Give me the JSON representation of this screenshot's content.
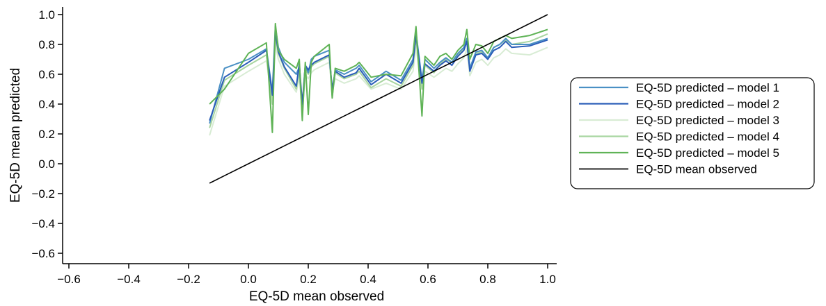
{
  "chart_data": {
    "type": "line",
    "title": "",
    "xlabel": "EQ-5D mean observed",
    "ylabel": "EQ-5D mean predicted",
    "xlim": [
      -0.65,
      1.02
    ],
    "ylim": [
      -0.65,
      1.06
    ],
    "x_ticks": [
      -0.6,
      -0.4,
      -0.2,
      0.0,
      0.2,
      0.4,
      0.6,
      0.8,
      1.0
    ],
    "x_tick_labels": [
      "−0.6",
      "−0.4",
      "−0.2",
      "0.0",
      "0.2",
      "0.4",
      "0.6",
      "0.8",
      "1.0"
    ],
    "y_ticks": [
      -0.6,
      -0.4,
      -0.2,
      0.0,
      0.2,
      0.4,
      0.6,
      0.8,
      1.0
    ],
    "y_tick_labels": [
      "−0.6",
      "−0.4",
      "−0.2",
      "0.0",
      "0.2",
      "0.4",
      "0.6",
      "0.8",
      "1.0"
    ],
    "grid": false,
    "legend_position": "right",
    "x": [
      -0.13,
      -0.08,
      0.0,
      0.06,
      0.08,
      0.09,
      0.1,
      0.12,
      0.16,
      0.17,
      0.18,
      0.19,
      0.2,
      0.21,
      0.22,
      0.27,
      0.28,
      0.29,
      0.32,
      0.36,
      0.37,
      0.41,
      0.46,
      0.51,
      0.55,
      0.56,
      0.58,
      0.59,
      0.62,
      0.64,
      0.66,
      0.68,
      0.7,
      0.72,
      0.73,
      0.74,
      0.76,
      0.78,
      0.8,
      0.82,
      0.84,
      0.86,
      0.88,
      0.94,
      1.0
    ],
    "series": [
      {
        "name": "EQ-5D predicted – model 1",
        "color": "#4a90c4",
        "values": [
          0.27,
          0.64,
          0.7,
          0.77,
          0.48,
          0.92,
          0.78,
          0.68,
          0.6,
          0.65,
          0.38,
          0.66,
          0.61,
          0.7,
          0.72,
          0.76,
          0.46,
          0.63,
          0.6,
          0.64,
          0.66,
          0.55,
          0.62,
          0.56,
          0.7,
          0.88,
          0.56,
          0.7,
          0.64,
          0.68,
          0.71,
          0.68,
          0.74,
          0.78,
          0.84,
          0.64,
          0.75,
          0.76,
          0.71,
          0.78,
          0.8,
          0.84,
          0.8,
          0.8,
          0.84
        ]
      },
      {
        "name": "EQ-5D predicted – model 2",
        "color": "#2a5db8",
        "values": [
          0.29,
          0.58,
          0.68,
          0.76,
          0.46,
          0.88,
          0.75,
          0.65,
          0.52,
          0.67,
          0.4,
          0.66,
          0.63,
          0.66,
          0.68,
          0.73,
          0.5,
          0.62,
          0.58,
          0.61,
          0.64,
          0.53,
          0.6,
          0.54,
          0.68,
          0.86,
          0.54,
          0.67,
          0.62,
          0.66,
          0.69,
          0.66,
          0.72,
          0.76,
          0.82,
          0.62,
          0.73,
          0.74,
          0.7,
          0.76,
          0.78,
          0.82,
          0.78,
          0.79,
          0.83
        ]
      },
      {
        "name": "EQ-5D predicted – model 3",
        "color": "#d8ecd4",
        "values": [
          0.19,
          0.52,
          0.62,
          0.69,
          0.42,
          0.8,
          0.7,
          0.6,
          0.48,
          0.58,
          0.35,
          0.6,
          0.57,
          0.61,
          0.63,
          0.68,
          0.48,
          0.57,
          0.54,
          0.57,
          0.59,
          0.5,
          0.54,
          0.5,
          0.62,
          0.78,
          0.5,
          0.62,
          0.58,
          0.61,
          0.64,
          0.62,
          0.67,
          0.71,
          0.77,
          0.59,
          0.68,
          0.7,
          0.66,
          0.71,
          0.73,
          0.77,
          0.74,
          0.73,
          0.78
        ]
      },
      {
        "name": "EQ-5D predicted – model 4",
        "color": "#a8d5a0",
        "values": [
          0.24,
          0.56,
          0.66,
          0.73,
          0.4,
          0.85,
          0.74,
          0.64,
          0.5,
          0.62,
          0.33,
          0.64,
          0.6,
          0.65,
          0.67,
          0.72,
          0.45,
          0.61,
          0.57,
          0.6,
          0.62,
          0.51,
          0.57,
          0.52,
          0.66,
          0.84,
          0.5,
          0.66,
          0.61,
          0.67,
          0.7,
          0.68,
          0.73,
          0.77,
          0.83,
          0.64,
          0.74,
          0.75,
          0.71,
          0.78,
          0.8,
          0.83,
          0.8,
          0.82,
          0.87
        ]
      },
      {
        "name": "EQ-5D predicted – model 5",
        "color": "#5fb356",
        "values": [
          0.4,
          0.5,
          0.74,
          0.81,
          0.21,
          0.94,
          0.76,
          0.7,
          0.64,
          0.7,
          0.29,
          0.68,
          0.33,
          0.68,
          0.72,
          0.8,
          0.44,
          0.64,
          0.62,
          0.66,
          0.68,
          0.58,
          0.6,
          0.59,
          0.74,
          0.92,
          0.32,
          0.72,
          0.66,
          0.72,
          0.74,
          0.7,
          0.76,
          0.8,
          0.9,
          0.7,
          0.8,
          0.79,
          0.74,
          0.82,
          0.84,
          0.86,
          0.84,
          0.86,
          0.9
        ]
      },
      {
        "name": "EQ-5D mean observed",
        "color": "#000000",
        "values": [
          -0.13,
          -0.08,
          0.0,
          0.06,
          0.08,
          0.09,
          0.1,
          0.12,
          0.16,
          0.17,
          0.18,
          0.19,
          0.2,
          0.21,
          0.22,
          0.27,
          0.28,
          0.29,
          0.32,
          0.36,
          0.37,
          0.41,
          0.46,
          0.51,
          0.55,
          0.56,
          0.58,
          0.59,
          0.62,
          0.64,
          0.66,
          0.68,
          0.7,
          0.72,
          0.73,
          0.74,
          0.76,
          0.78,
          0.8,
          0.82,
          0.84,
          0.86,
          0.88,
          0.94,
          1.0
        ]
      }
    ]
  }
}
